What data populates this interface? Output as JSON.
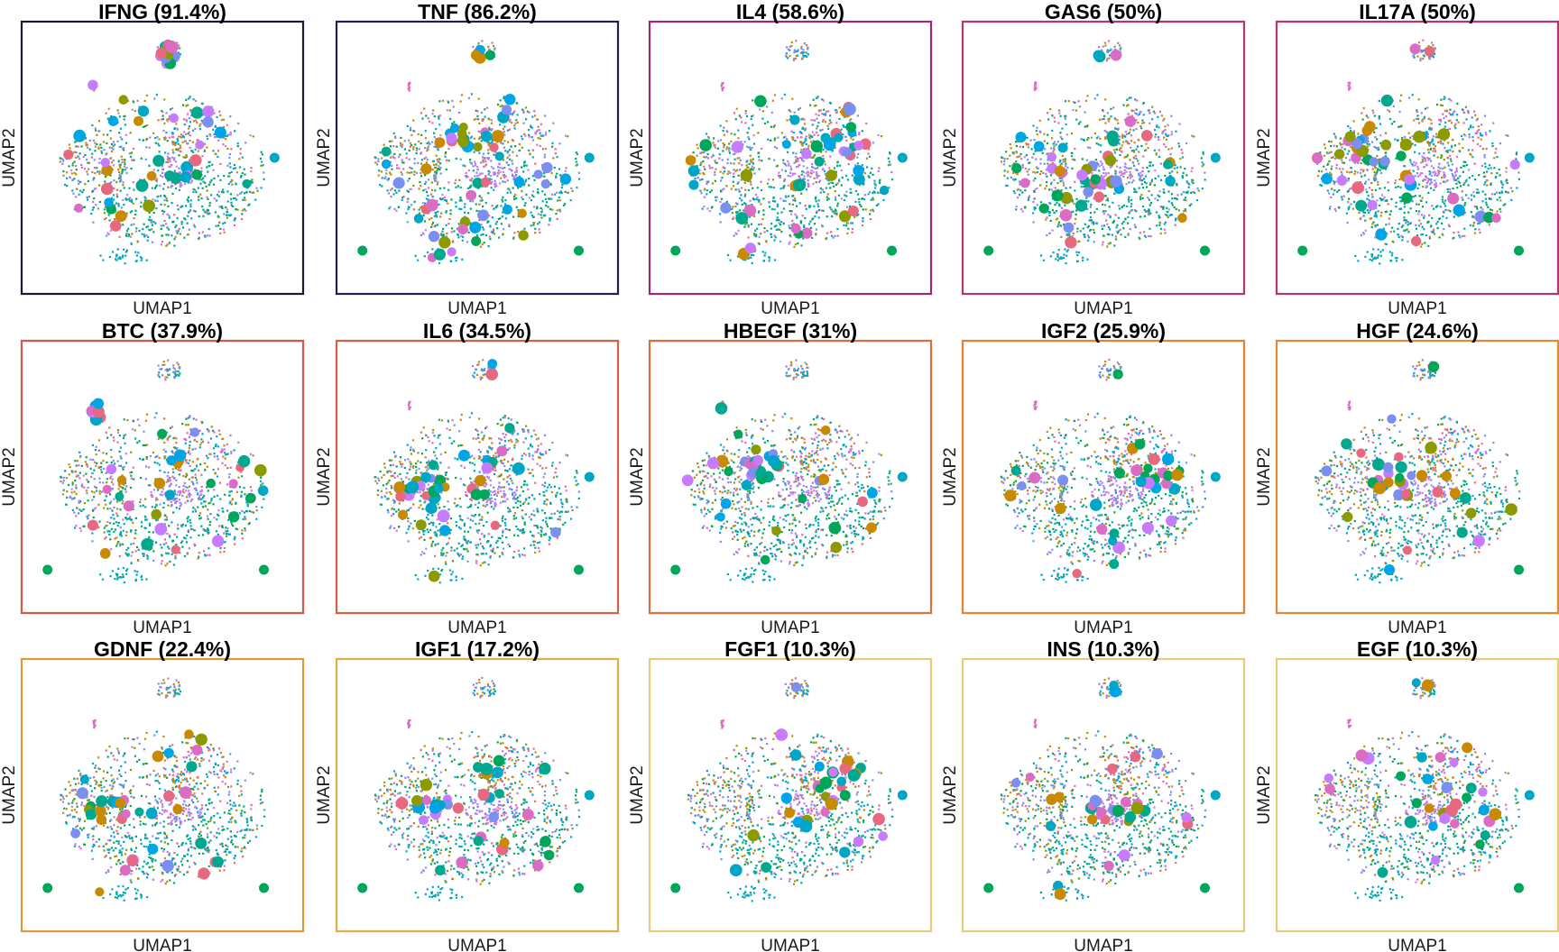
{
  "chart_data": {
    "type": "scatter",
    "layout": "5 columns x 3 rows of UMAP panels, each colored by cell cluster; large dots mark cells with top-ranked ligand activity",
    "xlabel": "UMAP1",
    "ylabel": "UMAP2",
    "ticks": "none",
    "grid": false,
    "cluster_colors": [
      "#C77CFF",
      "#DA6CC4",
      "#E7697F",
      "#C78A00",
      "#8C9A00",
      "#00A65A",
      "#00A88F",
      "#00A6C6",
      "#00A5E6",
      "#7A8FF0"
    ],
    "panels": [
      {
        "title": "IFNG (91.4%)",
        "gene": "IFNG",
        "percent": 91.4,
        "border_color": "#1B1538"
      },
      {
        "title": "TNF (86.2%)",
        "gene": "TNF",
        "percent": 86.2,
        "border_color": "#2A1A52"
      },
      {
        "title": "IL4 (58.6%)",
        "gene": "IL4",
        "percent": 58.6,
        "border_color": "#9B2A72"
      },
      {
        "title": "GAS6 (50%)",
        "gene": "GAS6",
        "percent": 50,
        "border_color": "#B33572"
      },
      {
        "title": "IL17A (50%)",
        "gene": "IL17A",
        "percent": 50,
        "border_color": "#B33572"
      },
      {
        "title": "BTC (37.9%)",
        "gene": "BTC",
        "percent": 37.9,
        "border_color": "#D2574F"
      },
      {
        "title": "IL6 (34.5%)",
        "gene": "IL6",
        "percent": 34.5,
        "border_color": "#D55F47"
      },
      {
        "title": "HBEGF (31%)",
        "gene": "HBEGF",
        "percent": 31,
        "border_color": "#DB6E3D"
      },
      {
        "title": "IGF2 (25.9%)",
        "gene": "IGF2",
        "percent": 25.9,
        "border_color": "#E08335"
      },
      {
        "title": "HGF (24.6%)",
        "gene": "HGF",
        "percent": 24.6,
        "border_color": "#E08A35"
      },
      {
        "title": "GDNF (22.4%)",
        "gene": "GDNF",
        "percent": 22.4,
        "border_color": "#DF9A35"
      },
      {
        "title": "IGF1 (17.2%)",
        "gene": "IGF1",
        "percent": 17.2,
        "border_color": "#E2AE48"
      },
      {
        "title": "FGF1 (10.3%)",
        "gene": "FGF1",
        "percent": 10.3,
        "border_color": "#E8CB7C"
      },
      {
        "title": "INS (10.3%)",
        "gene": "INS",
        "percent": 10.3,
        "border_color": "#E8CB7C"
      },
      {
        "title": "EGF (10.3%)",
        "gene": "EGF",
        "percent": 10.3,
        "border_color": "#E8CB7C"
      }
    ]
  }
}
